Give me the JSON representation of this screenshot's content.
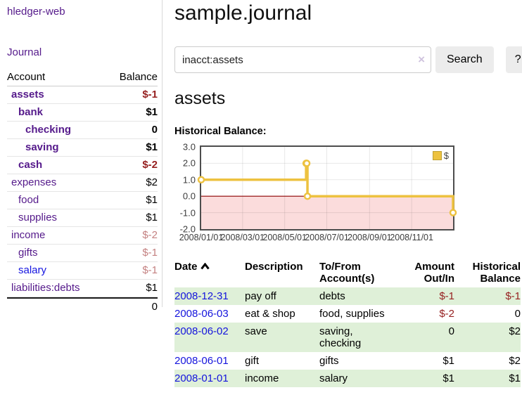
{
  "sidebar": {
    "brand": "hledger-web",
    "nav": [
      {
        "label": "Journal"
      }
    ],
    "accounts_table": {
      "headers": {
        "account": "Account",
        "balance": "Balance"
      },
      "rows": [
        {
          "name": "assets",
          "depth": 1,
          "bold": true,
          "balance": "$-1"
        },
        {
          "name": "bank",
          "depth": 2,
          "bold": true,
          "balance": "$1"
        },
        {
          "name": "checking",
          "depth": 3,
          "bold": true,
          "balance": "0"
        },
        {
          "name": "saving",
          "depth": 3,
          "bold": true,
          "balance": "$1"
        },
        {
          "name": "cash",
          "depth": 2,
          "bold": true,
          "balance": "$-2"
        },
        {
          "name": "expenses",
          "depth": 1,
          "bold": false,
          "balance": "$2"
        },
        {
          "name": "food",
          "depth": 2,
          "bold": false,
          "balance": "$1"
        },
        {
          "name": "supplies",
          "depth": 2,
          "bold": false,
          "balance": "$1"
        },
        {
          "name": "income",
          "depth": 1,
          "bold": false,
          "balance": "$-2"
        },
        {
          "name": "gifts",
          "depth": 2,
          "bold": false,
          "balance": "$-1"
        },
        {
          "name": "salary",
          "depth": 2,
          "bold": false,
          "balance": "$-1",
          "link_style": "unvisited"
        },
        {
          "name": "liabilities:debts",
          "depth": 1,
          "bold": false,
          "balance": "$1"
        }
      ],
      "total": "0"
    }
  },
  "header": {
    "title": "sample.journal"
  },
  "search": {
    "value": "inacct:assets",
    "clear_icon": "×",
    "button": "Search",
    "help_button": "?"
  },
  "account_page": {
    "title": "assets",
    "chart_label": "Historical Balance:"
  },
  "chart_data": {
    "type": "line",
    "style": "step",
    "title": "Historical Balance",
    "series": [
      {
        "name": "$",
        "color": "#edc240",
        "points": [
          {
            "date": "2008-01-01",
            "value": 1
          },
          {
            "date": "2008-06-01",
            "value": 2
          },
          {
            "date": "2008-06-02",
            "value": 2
          },
          {
            "date": "2008-06-03",
            "value": 0
          },
          {
            "date": "2008-12-31",
            "value": -1
          }
        ]
      }
    ],
    "x_start": "2008-01-01",
    "x_end": "2008-12-31",
    "x_ticks": [
      {
        "label": "2008/01/01",
        "date": "2008-01-01"
      },
      {
        "label": "2008/03/01",
        "date": "2008-03-01"
      },
      {
        "label": "2008/05/01",
        "date": "2008-05-01"
      },
      {
        "label": "2008/07/01",
        "date": "2008-07-01"
      },
      {
        "label": "2008/09/01",
        "date": "2008-09-01"
      },
      {
        "label": "2008/11/01",
        "date": "2008-11-01"
      }
    ],
    "y_ticks": [
      {
        "label": "3.0",
        "value": 3
      },
      {
        "label": "2.0",
        "value": 2
      },
      {
        "label": "1.0",
        "value": 1
      },
      {
        "label": "0.0",
        "value": 0
      },
      {
        "label": "-1.0",
        "value": -1
      },
      {
        "label": "-2.0",
        "value": -2
      }
    ],
    "ylim": [
      -2,
      3
    ],
    "grid": true,
    "legend": {
      "label": "$",
      "position": "top-right"
    },
    "colors": {
      "line": "#edc240",
      "negative_region": "#fbdcdc",
      "zero_line": "#8b0000",
      "gridline": "#e2e2e2",
      "border": "#4d4d4d"
    }
  },
  "register_table": {
    "headers": [
      "Date",
      "Description",
      "To/From Account(s)",
      "Amount Out/In",
      "Historical Balance"
    ],
    "rows": [
      {
        "date": "2008-12-31",
        "description": "pay off",
        "accounts": "debts",
        "amount": "$-1",
        "balance": "$-1"
      },
      {
        "date": "2008-06-03",
        "description": "eat & shop",
        "accounts": "food, supplies",
        "amount": "$-2",
        "balance": "0"
      },
      {
        "date": "2008-06-02",
        "description": "save",
        "accounts": "saving, checking",
        "amount": "0",
        "balance": "$2"
      },
      {
        "date": "2008-06-01",
        "description": "gift",
        "accounts": "gifts",
        "amount": "$1",
        "balance": "$2"
      },
      {
        "date": "2008-01-01",
        "description": "income",
        "accounts": "salary",
        "amount": "$1",
        "balance": "$1"
      }
    ]
  }
}
